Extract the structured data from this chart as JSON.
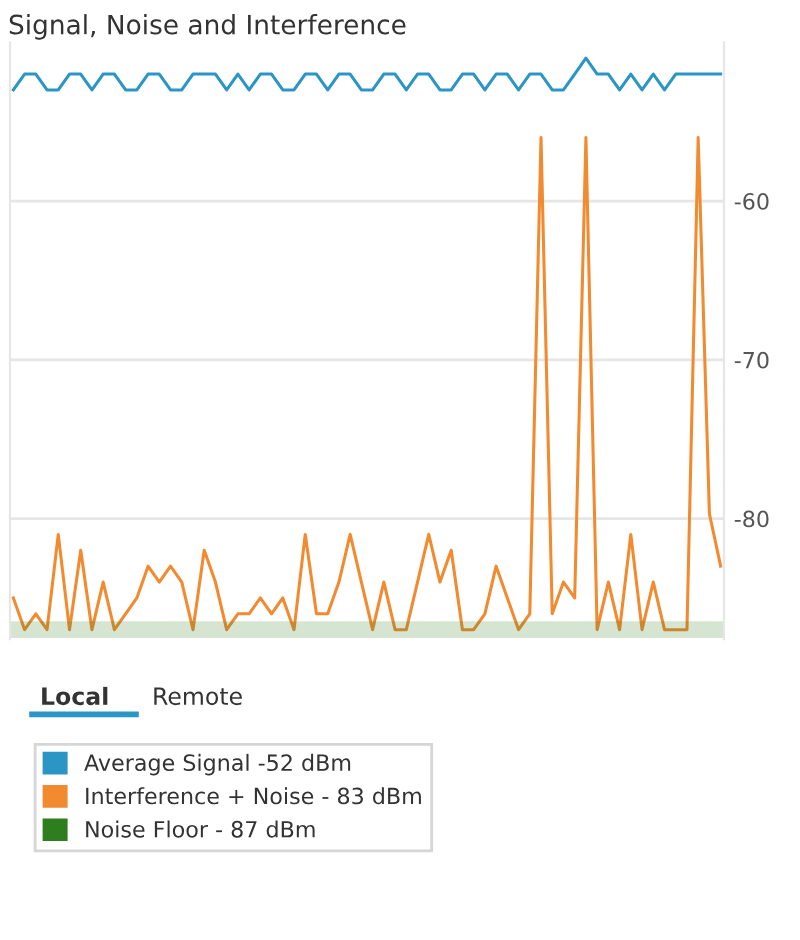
{
  "chart_data": {
    "type": "line",
    "title": "Signal, Noise and Interference",
    "annotations": [
      "Local",
      "Remote"
    ],
    "categories": [
      null,
      null,
      null,
      null,
      null,
      null,
      null,
      null,
      null,
      null,
      null,
      null,
      null,
      null,
      null,
      null,
      null,
      null,
      null,
      null,
      null,
      null,
      null,
      null,
      null,
      null,
      null,
      null,
      null,
      null,
      null,
      null,
      null,
      null,
      null,
      null,
      null,
      null,
      null,
      null,
      null,
      null,
      null,
      null,
      null,
      null,
      null,
      null,
      null,
      null,
      null,
      null,
      null,
      null,
      null,
      null,
      null,
      null,
      null,
      null,
      null,
      null,
      null,
      null
    ],
    "series": [
      {
        "name": "Average Signal -52 dBm",
        "color": "#2b95c6",
        "values": [
          -53,
          -52,
          -52,
          -53,
          -53,
          -52,
          -52,
          -53,
          -52,
          -52,
          -53,
          -53,
          -52,
          -52,
          -53,
          -53,
          -52,
          -52,
          -52,
          -53,
          -52,
          -53,
          -52,
          -52,
          -53,
          -53,
          -52,
          -52,
          -53,
          -52,
          -52,
          -53,
          -53,
          -52,
          -52,
          -53,
          -52,
          -52,
          -53,
          -53,
          -52,
          -52,
          -53,
          -52,
          -52,
          -53,
          -52,
          -52,
          -53,
          -53,
          -52,
          -51,
          -52,
          -52,
          -53,
          -52,
          -53,
          -52,
          -53,
          -52,
          -52,
          -52,
          -52,
          -52
        ]
      },
      {
        "name": "Interference + Noise - 83 dBm",
        "color": "#f28a30",
        "values": [
          -85,
          -87,
          -86,
          -87,
          -81,
          -87,
          -82,
          -87,
          -84,
          -87,
          -86,
          -85,
          -83,
          -84,
          -83,
          -84,
          -87,
          -82,
          -84,
          -87,
          -86,
          -86,
          -85,
          -86,
          -85,
          -87,
          -81,
          -86,
          -86,
          -84,
          -81,
          -84,
          -87,
          -84,
          -87,
          -87,
          -84,
          -81,
          -84,
          -82,
          -87,
          -87,
          -86,
          -83,
          -85,
          -87,
          -86,
          -56,
          -86,
          -84,
          -85,
          -56,
          -87,
          -84,
          -87,
          -81,
          -87,
          -84,
          -87,
          -87,
          -87,
          -56,
          -79.7,
          -83
        ]
      },
      {
        "name": "Noise Floor - 87 dBm",
        "color": "#2e7d1e",
        "values": [
          -87,
          -87,
          -87,
          -87,
          -87,
          -87,
          -87,
          -87,
          -87,
          -87,
          -87,
          -87,
          -87,
          -87,
          -87,
          -87,
          -87,
          -87,
          -87,
          -87,
          -87,
          -87,
          -87,
          -87,
          -87,
          -87,
          -87,
          -87,
          -87,
          -87,
          -87,
          -87,
          -87,
          -87,
          -87,
          -87,
          -87,
          -87,
          -87,
          -87,
          -87,
          -87,
          -87,
          -87,
          -87,
          -87,
          -87,
          -87,
          -87,
          -87,
          -87,
          -87,
          -87,
          -87,
          -87,
          -87,
          -87,
          -87,
          -87,
          -87,
          -87,
          -87,
          -87,
          -87
        ]
      }
    ],
    "ylim": [
      -87.6,
      -50
    ],
    "yticks": [
      -80,
      -70,
      -60
    ],
    "grid": "y",
    "tick_labels": "y",
    "legend": "bottom"
  }
}
